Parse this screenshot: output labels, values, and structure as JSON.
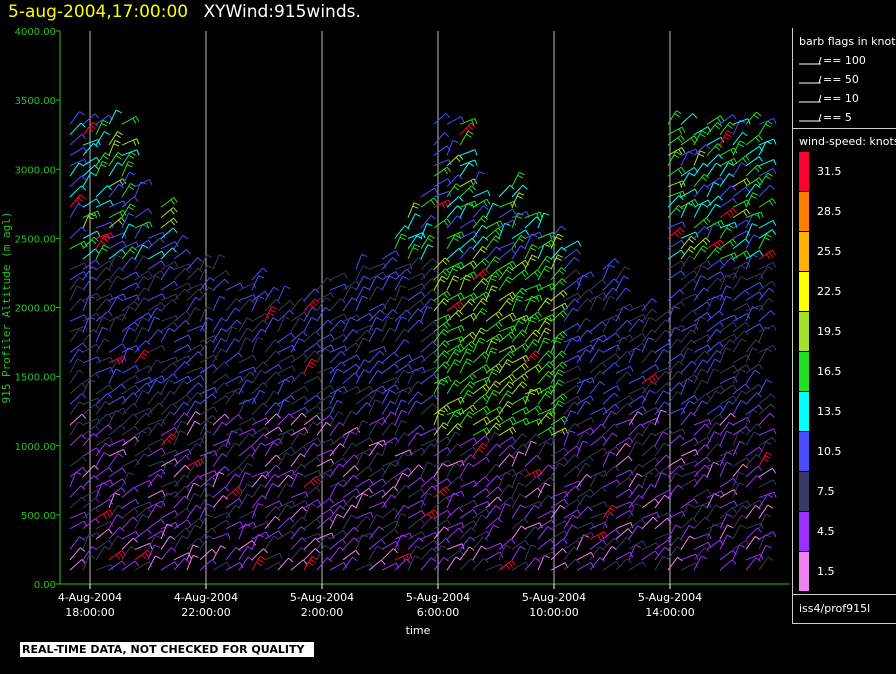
{
  "header": {
    "timestamp": "5-aug-2004,17:00:00",
    "title": "XYWind:915winds."
  },
  "disclaimer": "REAL-TIME DATA, NOT CHECKED FOR QUALITY",
  "chart_data": {
    "type": "wind-barb",
    "xlabel": "time",
    "ylabel": "915 Profiler Altitude (m agl)",
    "ylim": [
      0,
      4000
    ],
    "yticks": [
      "4000.00",
      "3500.00",
      "3000.00",
      "2500.00",
      "2000.00",
      "1500.00",
      "1000.00",
      "500.00",
      "0.00"
    ],
    "xticks": [
      {
        "date": "4-Aug-2004",
        "time": "18:00:00"
      },
      {
        "date": "4-Aug-2004",
        "time": "22:00:00"
      },
      {
        "date": "5-Aug-2004",
        "time": "2:00:00"
      },
      {
        "date": "5-Aug-2004",
        "time": "6:00:00"
      },
      {
        "date": "5-Aug-2004",
        "time": "10:00:00"
      },
      {
        "date": "5-Aug-2004",
        "time": "14:00:00"
      }
    ],
    "grid_vertical": true,
    "axis_color": "#22c322",
    "legend": {
      "barb_title": "barb flags in knots",
      "barb_flags": [
        "== 100",
        "== 50",
        "== 10",
        "== 5"
      ],
      "speed_title": "wind-speed: knots",
      "speed_levels": [
        {
          "value": "31.5",
          "color": "#ff0033"
        },
        {
          "value": "28.5",
          "color": "#ff8000"
        },
        {
          "value": "25.5",
          "color": "#ffb300"
        },
        {
          "value": "22.5",
          "color": "#ffff00"
        },
        {
          "value": "19.5",
          "color": "#a6e02a"
        },
        {
          "value": "16.5",
          "color": "#22e022"
        },
        {
          "value": "13.5",
          "color": "#00ffff"
        },
        {
          "value": "10.5",
          "color": "#4c4cff"
        },
        {
          "value": "7.5",
          "color": "#3a3a66"
        },
        {
          "value": "4.5",
          "color": "#9b30ff"
        },
        {
          "value": "1.5",
          "color": "#ee82ee"
        }
      ],
      "source": "iss4/prof915l"
    }
  }
}
